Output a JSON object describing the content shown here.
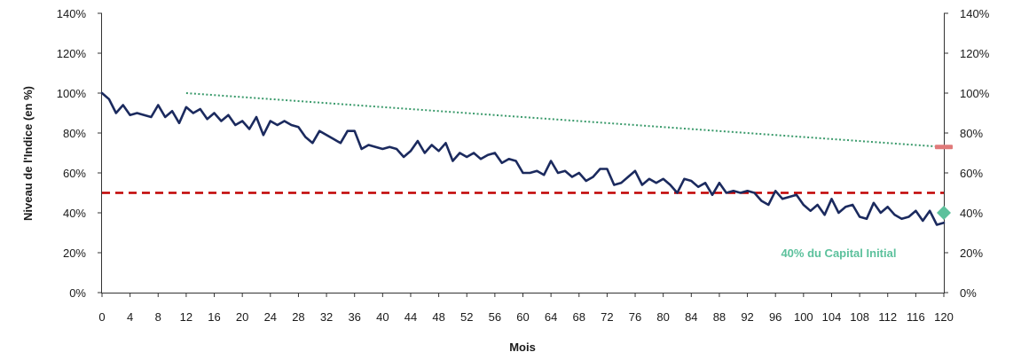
{
  "chart_data": {
    "type": "line",
    "xlabel": "Mois",
    "ylabel": "Niveau de l'Indice (en %)",
    "xlim": [
      0,
      120
    ],
    "ylim": [
      0,
      140
    ],
    "x_ticks": [
      0,
      4,
      8,
      12,
      16,
      20,
      24,
      28,
      32,
      36,
      40,
      44,
      48,
      52,
      56,
      60,
      64,
      68,
      72,
      76,
      80,
      84,
      88,
      92,
      96,
      100,
      104,
      108,
      112,
      116,
      120
    ],
    "y_ticks": [
      0,
      20,
      40,
      60,
      80,
      100,
      120,
      140
    ],
    "y_tick_labels": [
      "0%",
      "20%",
      "40%",
      "60%",
      "80%",
      "100%",
      "120%",
      "140%"
    ],
    "grid": false,
    "series": [
      {
        "color": "#1b2a5e",
        "style": "solid",
        "x": [
          0,
          1,
          2,
          3,
          4,
          5,
          6,
          7,
          8,
          9,
          10,
          11,
          12,
          13,
          14,
          15,
          16,
          17,
          18,
          19,
          20,
          21,
          22,
          23,
          24,
          25,
          26,
          27,
          28,
          29,
          30,
          31,
          32,
          33,
          34,
          35,
          36,
          37,
          38,
          39,
          40,
          41,
          42,
          43,
          44,
          45,
          46,
          47,
          48,
          49,
          50,
          51,
          52,
          53,
          54,
          55,
          56,
          57,
          58,
          59,
          60,
          61,
          62,
          63,
          64,
          65,
          66,
          67,
          68,
          69,
          70,
          71,
          72,
          73,
          74,
          75,
          76,
          77,
          78,
          79,
          80,
          81,
          82,
          83,
          84,
          85,
          86,
          87,
          88,
          89,
          90,
          91,
          92,
          93,
          94,
          95,
          96,
          97,
          98,
          99,
          100,
          101,
          102,
          103,
          104,
          105,
          106,
          107,
          108,
          109,
          110,
          111,
          112,
          113,
          114,
          115,
          116,
          117,
          118,
          119,
          120
        ],
        "y": [
          100,
          97,
          90,
          94,
          89,
          90,
          89,
          88,
          94,
          88,
          91,
          85,
          93,
          90,
          92,
          87,
          90,
          86,
          89,
          84,
          86,
          82,
          88,
          79,
          86,
          84,
          86,
          84,
          83,
          78,
          75,
          81,
          79,
          77,
          75,
          81,
          81,
          72,
          74,
          73,
          72,
          73,
          72,
          68,
          71,
          76,
          70,
          74,
          71,
          75,
          66,
          70,
          68,
          70,
          67,
          69,
          70,
          65,
          67,
          66,
          60,
          60,
          61,
          59,
          66,
          60,
          61,
          58,
          60,
          56,
          58,
          62,
          62,
          54,
          55,
          58,
          61,
          54,
          57,
          55,
          57,
          54,
          50,
          57,
          56,
          53,
          55,
          49,
          55,
          50,
          51,
          50,
          51,
          50,
          46,
          44,
          51,
          47,
          48,
          49,
          44,
          41,
          44,
          39,
          47,
          40,
          43,
          44,
          38,
          37,
          45,
          40,
          43,
          39,
          37,
          38,
          41,
          36,
          41,
          34,
          35
        ]
      },
      {
        "color": "#3a9a6b",
        "style": "dotted",
        "x": [
          12,
          120
        ],
        "y": [
          100,
          73
        ]
      },
      {
        "color": "#c00000",
        "style": "dashed",
        "x": [
          0,
          120
        ],
        "y": [
          50,
          50
        ]
      }
    ],
    "markers": [
      {
        "shape": "bar",
        "color": "#e07a7a",
        "x": 120,
        "y": 73
      },
      {
        "shape": "diamond",
        "color": "#5cc19c",
        "x": 120,
        "y": 40
      }
    ],
    "annotations": [
      {
        "text": "40% du Capital Initial",
        "color": "#5cc19c",
        "x": 104,
        "y": 20
      }
    ]
  }
}
